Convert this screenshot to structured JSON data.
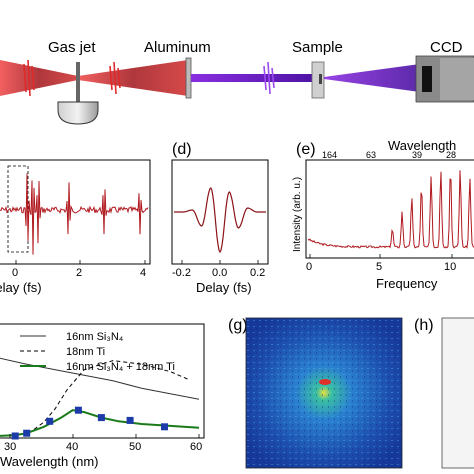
{
  "setup": {
    "labels": {
      "gas_jet": "Gas jet",
      "aluminum": "Aluminum",
      "sample": "Sample",
      "ccd": "CCD"
    },
    "colors": {
      "laser": "#b0191f",
      "xuv": "#6a1fc2",
      "beam_glow": "#e83a3a"
    }
  },
  "panel_c": {
    "xlabel": "Delay (fs)",
    "ticks": [
      "0",
      "2",
      "4"
    ]
  },
  "panel_d": {
    "tag": "(d)",
    "xlabel": "Delay (fs)",
    "ticks": [
      "-0.2",
      "0.0",
      "0.2"
    ]
  },
  "panel_e": {
    "tag": "(e)",
    "top_label": "Wavelength",
    "top_ticks": [
      "164",
      "63",
      "39",
      "28"
    ],
    "ylabel": "Intensity (arb. u.)",
    "xlabel": "Frequency",
    "bottom_ticks": [
      "0",
      "5",
      "10"
    ]
  },
  "panel_f": {
    "legend": [
      {
        "text": "16nm Si₃N₄",
        "style": "solid-gray"
      },
      {
        "text": "18nm Ti",
        "style": "dashed-black"
      },
      {
        "text": "16nm Si₃N₄ + 18nm Ti",
        "style": "solid-green"
      }
    ],
    "xlabel": "Wavelength (nm)",
    "xticks": [
      "30",
      "40",
      "50",
      "60"
    ],
    "colors": {
      "green": "#1a7a1a",
      "marker": "#1c3aa8",
      "gray": "#333333"
    }
  },
  "panel_g": {
    "tag": "(g)"
  },
  "panel_h": {
    "tag": "(h)"
  },
  "chart_data": [
    {
      "type": "line",
      "panel": "c",
      "xlabel": "Delay (fs)",
      "xlim": [
        -1.2,
        4.2
      ],
      "series": [
        {
          "x": [
            -1.1,
            -0.2,
            0.0,
            0.2,
            1.3,
            2.6,
            3.9
          ],
          "y": [
            0.0,
            0.9,
            -1.0,
            0.9,
            0.7,
            0.65,
            0.6
          ]
        }
      ]
    },
    {
      "type": "line",
      "panel": "d",
      "xlabel": "Delay (fs)",
      "xlim": [
        -0.25,
        0.25
      ],
      "series": [
        {
          "x": [
            -0.2,
            -0.15,
            -0.1,
            -0.05,
            0.0,
            0.05,
            0.1,
            0.15,
            0.2
          ],
          "y": [
            0.0,
            0.05,
            -0.35,
            0.6,
            -1.0,
            0.5,
            -0.4,
            0.1,
            0.0
          ]
        }
      ]
    },
    {
      "type": "line",
      "panel": "e",
      "xlabel": "Frequency",
      "ylabel": "Intensity (arb. u.)",
      "xlim": [
        0,
        12
      ],
      "series": [
        {
          "x": [
            6.1,
            6.8,
            7.5,
            8.2,
            8.9,
            9.6,
            10.3,
            11.0,
            11.7
          ],
          "y": [
            0.18,
            0.35,
            0.5,
            0.62,
            0.72,
            0.78,
            0.8,
            0.78,
            0.7
          ]
        }
      ]
    },
    {
      "type": "line",
      "panel": "f",
      "xlabel": "Wavelength (nm)",
      "xlim": [
        25,
        60
      ],
      "series": [
        {
          "name": "16nm Si₃N₄",
          "x": [
            25,
            30,
            35,
            40,
            45,
            50,
            55,
            60
          ],
          "y": [
            0.85,
            0.78,
            0.72,
            0.66,
            0.6,
            0.52,
            0.46,
            0.4
          ]
        },
        {
          "name": "18nm Ti",
          "x": [
            29,
            31,
            33,
            35,
            37,
            40,
            45,
            50,
            55,
            58
          ],
          "y": [
            0.02,
            0.06,
            0.15,
            0.3,
            0.5,
            0.72,
            0.82,
            0.78,
            0.7,
            0.62
          ]
        },
        {
          "name": "16nm Si₃N₄ + 18nm Ti",
          "x": [
            25,
            28,
            30,
            33,
            36,
            38,
            40,
            43,
            46,
            50,
            55,
            60
          ],
          "y": [
            0.0,
            0.01,
            0.03,
            0.1,
            0.2,
            0.28,
            0.26,
            0.2,
            0.16,
            0.13,
            0.11,
            0.09
          ]
        },
        {
          "name": "",
          "x": [
            28,
            30,
            34,
            39,
            43,
            48,
            54
          ],
          "y": [
            0.0,
            0.03,
            0.16,
            0.28,
            0.2,
            0.17,
            0.1
          ]
        }
      ]
    }
  ]
}
